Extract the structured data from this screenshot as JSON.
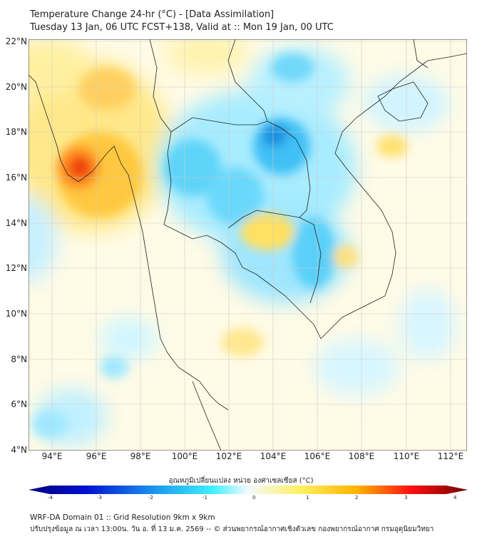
{
  "title": "Temperature Change 24-hr (°C) - [Data Assimilation]",
  "subtitle": "Tuesday 13 Jan, 06 UTC FCST+138, Valid at :: Mon 19 Jan, 00 UTC",
  "lat_labels": [
    "22°N",
    "20°N",
    "18°N",
    "16°N",
    "14°N",
    "12°N",
    "10°N",
    "8°N",
    "6°N",
    "4°N"
  ],
  "lon_labels": [
    "94°E",
    "96°E",
    "98°E",
    "100°E",
    "102°E",
    "104°E",
    "106°E",
    "108°E",
    "110°E",
    "112°E"
  ],
  "colorbar": {
    "label": "อุณหภูมิเปลี่ยนแปลง หน่วย องศาเซลเซียส (°C)",
    "ticks": [
      "-4",
      "-3",
      "-2",
      "-1",
      "0",
      "1",
      "2",
      "3",
      "4"
    ]
  },
  "footer": {
    "line1": "WRF-DA Domain 01 :: Grid Resolution 9km x 9km",
    "line2": "ปรับปรุงข้อมูล ณ เวลา 13:00น. วัน อ. ที่ 13 ม.ค. 2569 -- © ส่วนพยากรณ์อากาศเชิงตัวเลข กองพยากรณ์อากาศ กรมอุตุนิยมวิทยา"
  }
}
